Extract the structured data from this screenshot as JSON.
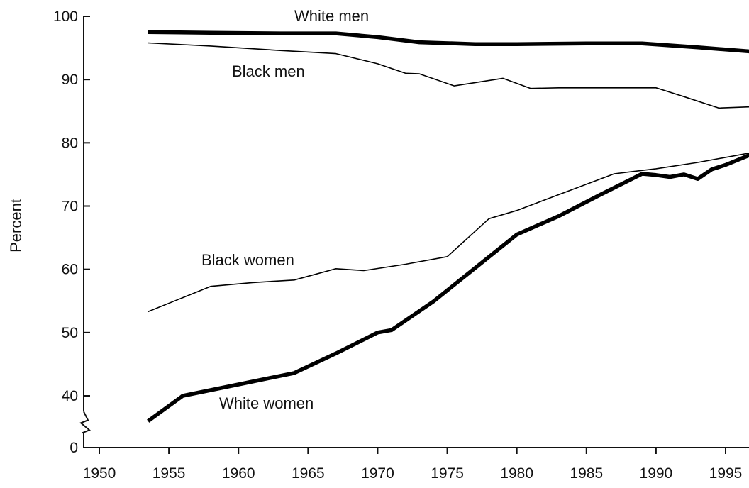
{
  "chart_data": {
    "type": "line",
    "title": "",
    "xlabel": "",
    "ylabel": "Percent",
    "xlim": [
      1948.5,
      1997.5
    ],
    "ylim": [
      0,
      100
    ],
    "axis_break": true,
    "grid": false,
    "legend": "none (series labeled inline)",
    "x_ticks": [
      1950,
      1955,
      1960,
      1965,
      1970,
      1975,
      1980,
      1985,
      1990,
      1995
    ],
    "y_ticks": [
      0,
      40,
      50,
      60,
      70,
      80,
      90,
      100
    ],
    "series": [
      {
        "name": "White men",
        "x": [
          1953.5,
          1958,
          1963,
          1967,
          1970,
          1973,
          1977,
          1980,
          1985,
          1989,
          1993,
          1997
        ],
        "y": [
          97.5,
          97.4,
          97.3,
          97.3,
          96.7,
          95.9,
          95.6,
          95.6,
          95.7,
          95.7,
          95.1,
          94.4
        ]
      },
      {
        "name": "Black men",
        "x": [
          1953.5,
          1958,
          1963,
          1967,
          1970,
          1972,
          1973,
          1975.5,
          1979,
          1981,
          1983,
          1986,
          1989,
          1990,
          1992,
          1994.5,
          1997
        ],
        "y": [
          95.8,
          95.3,
          94.6,
          94.1,
          92.5,
          91.0,
          90.9,
          89.0,
          90.2,
          88.6,
          88.7,
          88.7,
          88.7,
          88.7,
          87.3,
          85.5,
          85.7
        ]
      },
      {
        "name": "Black women",
        "x": [
          1953.5,
          1958,
          1961,
          1964,
          1967,
          1969,
          1972,
          1975,
          1978,
          1980,
          1983,
          1987,
          1990,
          1993,
          1997
        ],
        "y": [
          53.3,
          57.3,
          57.9,
          58.3,
          60.1,
          59.8,
          60.8,
          62.0,
          68.0,
          69.3,
          71.8,
          75.1,
          75.9,
          76.9,
          78.5
        ]
      },
      {
        "name": "White women",
        "x": [
          1953.5,
          1956,
          1960,
          1964,
          1967,
          1970,
          1971,
          1974,
          1977,
          1980,
          1983,
          1986,
          1989,
          1990,
          1991,
          1992,
          1993,
          1994,
          1995,
          1997
        ],
        "y": [
          36,
          40,
          41.8,
          43.6,
          46.7,
          50.0,
          50.4,
          54.9,
          60.2,
          65.5,
          68.4,
          71.8,
          75.1,
          74.9,
          74.6,
          75.0,
          74.3,
          75.8,
          76.5,
          78.3
        ]
      }
    ],
    "series_styles": [
      {
        "color": "#000000",
        "weight": "thick"
      },
      {
        "color": "#000000",
        "weight": "thin"
      },
      {
        "color": "#000000",
        "weight": "thin"
      },
      {
        "color": "#000000",
        "weight": "thick"
      }
    ]
  }
}
